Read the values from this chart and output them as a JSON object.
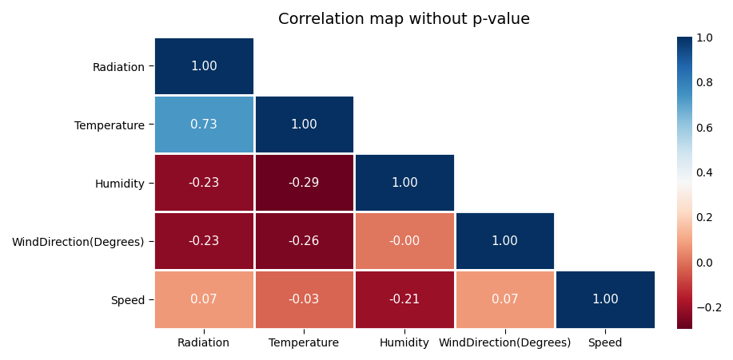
{
  "title": "Correlation map without p-value",
  "labels": [
    "Radiation",
    "Temperature",
    "Humidity",
    "WindDirection(Degrees)",
    "Speed"
  ],
  "matrix": [
    [
      1.0,
      null,
      null,
      null,
      null
    ],
    [
      0.73,
      1.0,
      null,
      null,
      null
    ],
    [
      -0.23,
      -0.29,
      1.0,
      null,
      null
    ],
    [
      -0.23,
      -0.26,
      -0.0,
      1.0,
      null
    ],
    [
      0.07,
      -0.03,
      -0.21,
      0.07,
      1.0
    ]
  ],
  "annot_matrix": [
    [
      "1.00",
      "",
      "",
      "",
      ""
    ],
    [
      "0.73",
      "1.00",
      "",
      "",
      ""
    ],
    [
      "-0.23",
      "-0.29",
      "1.00",
      "",
      ""
    ],
    [
      "-0.23",
      "-0.26",
      "-0.00",
      "1.00",
      ""
    ],
    [
      "0.07",
      "-0.03",
      "-0.21",
      "0.07",
      "1.00"
    ]
  ],
  "vmin": -0.3,
  "vmax": 1.0,
  "cmap": "RdBu",
  "title_fontsize": 14,
  "label_fontsize": 10,
  "annot_fontsize": 11,
  "figsize": [
    9.17,
    4.52
  ],
  "dpi": 100,
  "cbar_ticks": [
    1.0,
    0.8,
    0.6,
    0.4,
    0.2,
    0.0,
    -0.2
  ]
}
